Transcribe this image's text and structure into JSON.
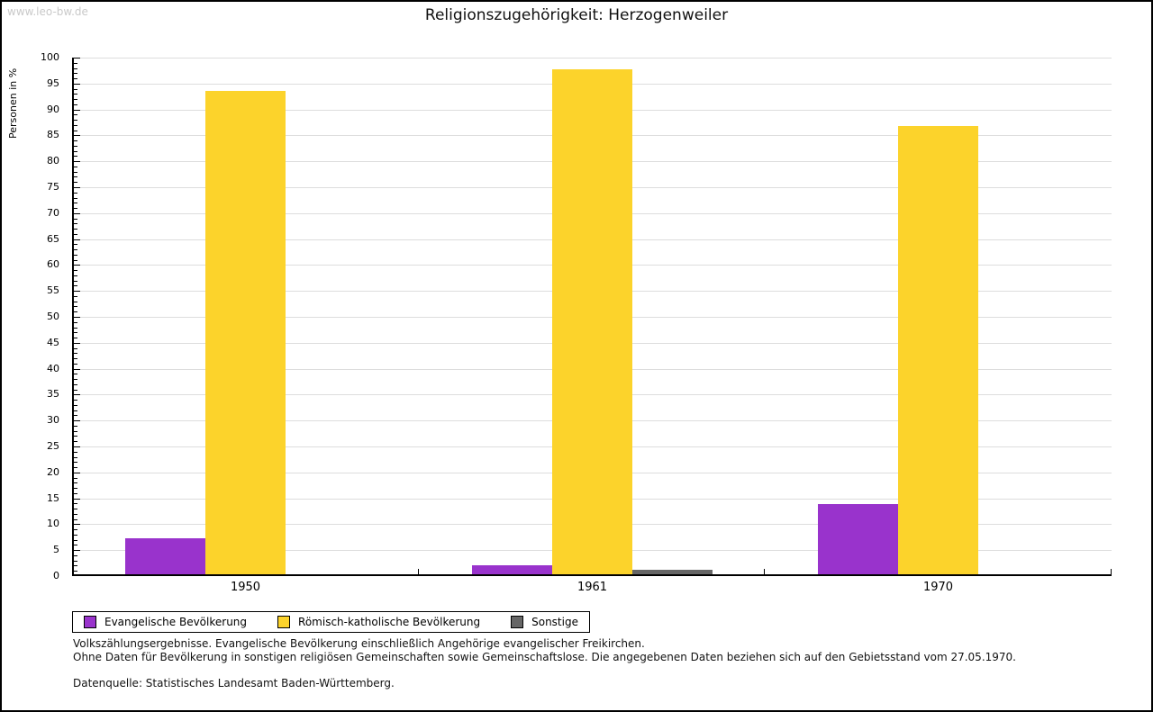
{
  "watermark": "www.leo-bw.de",
  "chart_data": {
    "type": "bar",
    "title": "Religionszugehörigkeit: Herzogenweiler",
    "xlabel": "",
    "ylabel": "Personen in %",
    "ylim": [
      0,
      100
    ],
    "y_major_step": 5,
    "y_minor_step": 1,
    "grid": true,
    "legend_position": "bottom",
    "categories": [
      "1950",
      "1961",
      "1970"
    ],
    "series": [
      {
        "name": "Evangelische Bevölkerung",
        "color": "#9933CC",
        "values": [
          6.9,
          1.7,
          13.6
        ]
      },
      {
        "name": "Römisch-katholische Bevölkerung",
        "color": "#FCD32B",
        "values": [
          93.2,
          97.4,
          86.4
        ]
      },
      {
        "name": "Sonstige",
        "color": "#666666",
        "values": [
          0,
          0.8,
          0
        ]
      }
    ]
  },
  "footnotes": {
    "line1": "Volkszählungsergebnisse. Evangelische Bevölkerung einschließlich Angehörige evangelischer Freikirchen.",
    "line2": "Ohne Daten für Bevölkerung in sonstigen religiösen Gemeinschaften sowie Gemeinschaftslose. Die angegebenen Daten beziehen sich auf den Gebietsstand vom 27.05.1970.",
    "source": "Datenquelle: Statistisches Landesamt Baden-Württemberg."
  }
}
